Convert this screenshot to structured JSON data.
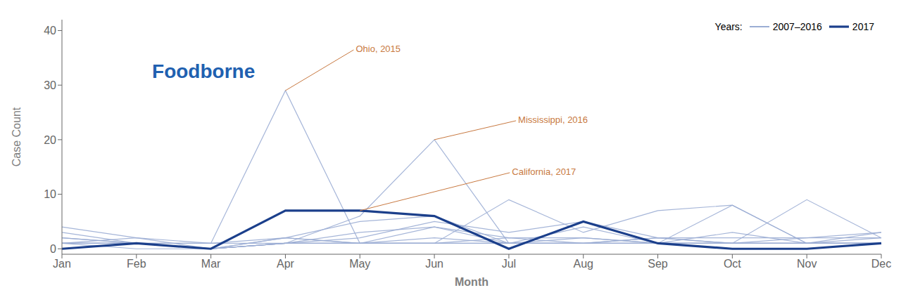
{
  "chart_data": {
    "type": "line",
    "title": "Foodborne",
    "x_label": "Month",
    "y_label": "Case Count",
    "categories": [
      "Jan",
      "Feb",
      "Mar",
      "Apr",
      "May",
      "Jun",
      "Jul",
      "Aug",
      "Sep",
      "Oct",
      "Nov",
      "Dec"
    ],
    "series": [
      {
        "name": "2007–2016",
        "color": "#9BADD4",
        "values": [
          4,
          2,
          0,
          1,
          1,
          1,
          9,
          3,
          7,
          8,
          1,
          2
        ]
      },
      {
        "name": "2007–2016",
        "color": "#9BADD4",
        "values": [
          2,
          1,
          0,
          1,
          2,
          5,
          3,
          5,
          2,
          2,
          2,
          3
        ]
      },
      {
        "name": "2007–2016",
        "color": "#9BADD4",
        "values": [
          1,
          1,
          1,
          1,
          3,
          4,
          2,
          2,
          1,
          3,
          1,
          1
        ]
      },
      {
        "name": "2007–2016",
        "color": "#9BADD4",
        "values": [
          1,
          2,
          1,
          29,
          1,
          4,
          1,
          1,
          2,
          1,
          1,
          1
        ]
      },
      {
        "name": "2007–2016",
        "color": "#9BADD4",
        "values": [
          1,
          1,
          0,
          1,
          6,
          20,
          1,
          1,
          1,
          1,
          1,
          1
        ]
      },
      {
        "name": "2007–2016",
        "color": "#9BADD4",
        "values": [
          1,
          1,
          0,
          2,
          5,
          6,
          1,
          1,
          2,
          1,
          9,
          2
        ]
      },
      {
        "name": "2007–2016",
        "color": "#9BADD4",
        "values": [
          2,
          1,
          1,
          2,
          1,
          1,
          1,
          2,
          1,
          1,
          2,
          2
        ]
      },
      {
        "name": "2007–2016",
        "color": "#9BADD4",
        "values": [
          3,
          1,
          0,
          2,
          1,
          1,
          2,
          1,
          1,
          1,
          1,
          1
        ]
      },
      {
        "name": "2007–2016",
        "color": "#9BADD4",
        "values": [
          1,
          0,
          0,
          1,
          1,
          1,
          1,
          4,
          1,
          8,
          1,
          3
        ]
      },
      {
        "name": "2007–2016",
        "color": "#9BADD4",
        "values": [
          1,
          1,
          0,
          1,
          1,
          2,
          1,
          1,
          1,
          1,
          1,
          1
        ]
      },
      {
        "name": "2017",
        "color": "#1B3F8B",
        "values": [
          0,
          1,
          0,
          7,
          7,
          6,
          0,
          5,
          1,
          0,
          0,
          1
        ]
      }
    ],
    "ylim": [
      -1,
      42
    ],
    "yticks": [
      0,
      10,
      20,
      30,
      40
    ],
    "grid": false,
    "legend": "upper right",
    "legend_title": "Years:",
    "annotations": [
      {
        "text": "Ohio, 2015",
        "x": "Apr",
        "y": 29,
        "color": "#C87941"
      },
      {
        "text": "Mississippi, 2016",
        "x": "Jun",
        "y": 20,
        "color": "#C87941"
      },
      {
        "text": "California, 2017",
        "x": "May",
        "y": 7,
        "color": "#C87941"
      }
    ]
  }
}
